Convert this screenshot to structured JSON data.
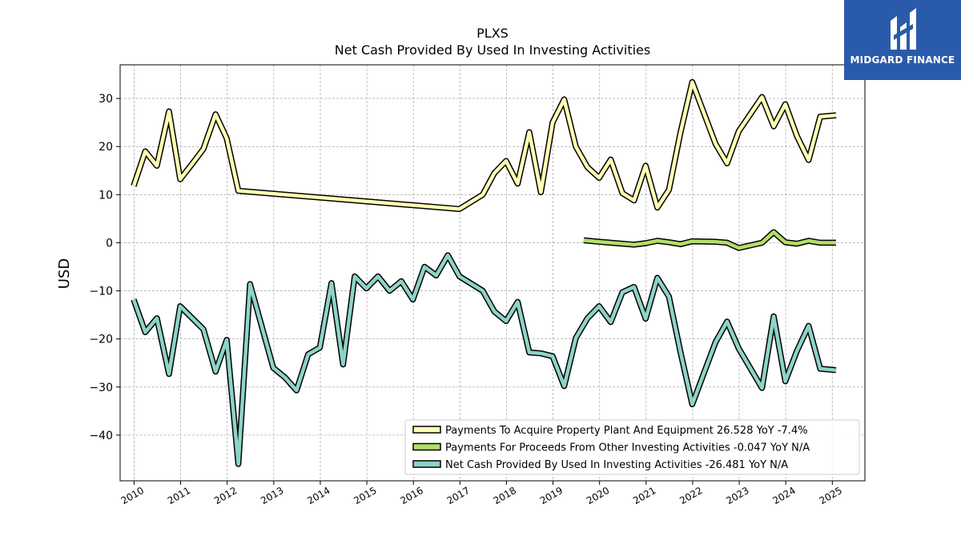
{
  "chart_data": {
    "type": "line",
    "title": "PLXS",
    "subtitle": "Net Cash Provided By Used In Investing Activities",
    "xlabel": "",
    "ylabel": "USD",
    "xlim": [
      2009.7,
      2025.7
    ],
    "ylim": [
      -49.5,
      37
    ],
    "yticks": [
      30,
      20,
      10,
      0,
      -10,
      -20,
      -30,
      -40
    ],
    "xticks": [
      "2010",
      "2011",
      "2012",
      "2013",
      "2014",
      "2015",
      "2016",
      "2017",
      "2018",
      "2019",
      "2020",
      "2021",
      "2022",
      "2023",
      "2024",
      "2025"
    ],
    "grid": true,
    "legend_position": "bottom-right",
    "series": [
      {
        "name": "Payments To Acquire Property Plant And Equipment  26.528 YoY -7.4%",
        "color": "#ffffb3",
        "x": [
          2009.99,
          2010.24,
          2010.49,
          2010.75,
          2010.99,
          2011.24,
          2011.49,
          2011.75,
          2011.99,
          2012.24,
          2016.99,
          2017.49,
          2017.74,
          2017.99,
          2018.24,
          2018.49,
          2018.74,
          2018.99,
          2019.24,
          2019.49,
          2019.74,
          2019.99,
          2020.24,
          2020.49,
          2020.74,
          2020.99,
          2021.24,
          2021.49,
          2021.74,
          2021.99,
          2022.49,
          2022.74,
          2022.99,
          2023.49,
          2023.74,
          2023.99,
          2024.24,
          2024.49,
          2024.74,
          2025.08
        ],
        "y": [
          11.8,
          19,
          16,
          27.3,
          13.2,
          16.3,
          19.5,
          26.7,
          21.7,
          10.8,
          7.0,
          10,
          14.5,
          17,
          12.3,
          23,
          10.5,
          25,
          29.8,
          20,
          15.7,
          13.5,
          17.3,
          10.3,
          8.8,
          16,
          7.3,
          11,
          23,
          33.4,
          20.6,
          16.5,
          23.2,
          30.3,
          24.2,
          28.8,
          22.2,
          17.2,
          26.2,
          26.5
        ]
      },
      {
        "name": "Payments For Proceeds From Other Investing Activities  -0.047 YoY N/A",
        "color": "#b3de69",
        "x": [
          2019.66,
          2019.99,
          2020.74,
          2020.99,
          2021.24,
          2021.49,
          2021.74,
          2021.99,
          2022.49,
          2022.74,
          2022.99,
          2023.49,
          2023.74,
          2023.99,
          2024.24,
          2024.49,
          2024.74,
          2025.08
        ],
        "y": [
          0.5,
          0.2,
          -0.4,
          -0.1,
          0.4,
          0.1,
          -0.3,
          0.3,
          0.2,
          0,
          -1.1,
          0,
          2.2,
          0.1,
          -0.2,
          0.4,
          0,
          0
        ]
      },
      {
        "name": "Net Cash Provided By Used In Investing Activities  -26.481 YoY N/A",
        "color": "#8dd3c7",
        "x": [
          2009.99,
          2010.24,
          2010.49,
          2010.75,
          2010.99,
          2011.24,
          2011.49,
          2011.75,
          2011.99,
          2012.24,
          2012.49,
          2012.99,
          2013.24,
          2013.49,
          2013.74,
          2013.99,
          2014.24,
          2014.49,
          2014.74,
          2014.99,
          2015.24,
          2015.49,
          2015.74,
          2015.99,
          2016.24,
          2016.49,
          2016.74,
          2016.99,
          2017.49,
          2017.74,
          2017.99,
          2018.24,
          2018.49,
          2018.74,
          2018.99,
          2019.24,
          2019.49,
          2019.74,
          2019.99,
          2020.24,
          2020.49,
          2020.74,
          2020.99,
          2021.24,
          2021.49,
          2021.74,
          2021.99,
          2022.49,
          2022.74,
          2022.99,
          2023.49,
          2023.74,
          2023.99,
          2024.24,
          2024.49,
          2024.74,
          2025.08
        ],
        "y": [
          -11.8,
          -18.6,
          -15.7,
          -27.3,
          -13.2,
          -15.6,
          -18,
          -26.8,
          -20.2,
          -46,
          -8.6,
          -26,
          -28,
          -30.7,
          -23.2,
          -21.8,
          -8.4,
          -25.3,
          -7,
          -9.5,
          -7,
          -10,
          -8,
          -11.8,
          -5,
          -6.8,
          -2.6,
          -7,
          -10,
          -14.3,
          -16.3,
          -12.3,
          -22.8,
          -23,
          -23.6,
          -29.8,
          -19.8,
          -15.7,
          -13.2,
          -16.5,
          -10.3,
          -9.2,
          -15.8,
          -7.3,
          -11.2,
          -22.8,
          -33.6,
          -20.7,
          -16.4,
          -22,
          -30.2,
          -15.3,
          -28.8,
          -22.5,
          -17.3,
          -26.2,
          -26.5
        ]
      }
    ]
  },
  "logo": {
    "text": "MIDGARD FINANCE",
    "background": "#2a5bab"
  }
}
